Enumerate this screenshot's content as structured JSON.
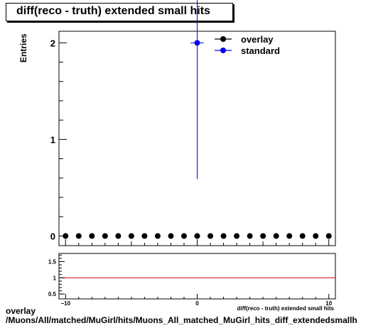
{
  "chart_data": [
    {
      "type": "scatter",
      "title": "diff(reco - truth) extended small hits",
      "ylabel": "Entries",
      "xlim": [
        -10.5,
        10.5
      ],
      "ylim": [
        -0.1,
        2.12
      ],
      "x_ticks": [
        -10,
        0,
        10
      ],
      "y_ticks": [
        0,
        1,
        2
      ],
      "legend_position": "top-right",
      "series": [
        {
          "name": "overlay",
          "color": "#000000",
          "x": [
            -10,
            -9,
            -8,
            -7,
            -6,
            -5,
            -4,
            -3,
            -2,
            -1,
            0,
            1,
            2,
            3,
            4,
            5,
            6,
            7,
            8,
            9,
            10
          ],
          "y": [
            0,
            0,
            0,
            0,
            0,
            0,
            0,
            0,
            0,
            0,
            0,
            0,
            0,
            0,
            0,
            0,
            0,
            0,
            0,
            0,
            0
          ]
        },
        {
          "name": "standard",
          "color": "#0000ee",
          "x": [
            0
          ],
          "y": [
            2
          ],
          "yerr": [
            1.41
          ],
          "xerr": [
            0.5
          ]
        }
      ]
    },
    {
      "type": "line",
      "xlabel": "diff(reco - truth) extended small hits",
      "xlim": [
        -10.5,
        10.5
      ],
      "ylim": [
        0.35,
        1.75
      ],
      "x_ticks": [
        "−10",
        "0",
        "10"
      ],
      "y_ticks": [
        "0.5",
        "1",
        "1.5"
      ],
      "reference_line": 1,
      "reference_color": "#cc0000"
    }
  ],
  "footer": {
    "line1": "overlay",
    "line2": "/Muons/All/matched/MuGirl/hits/Muons_All_matched_MuGirl_hits_diff_extendedsmallh"
  }
}
